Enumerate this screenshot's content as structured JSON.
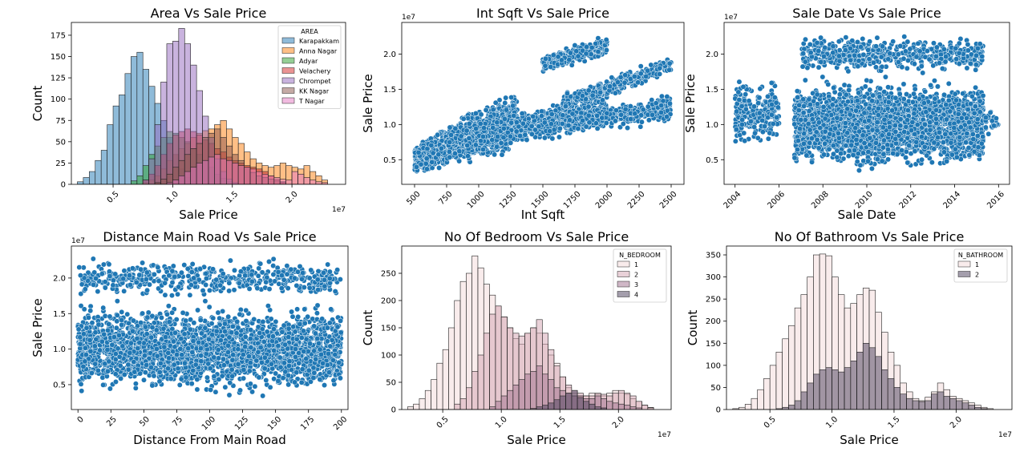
{
  "chart_data": [
    {
      "id": "area",
      "type": "histogram",
      "title": "Area Vs Sale Price",
      "xlabel": "Sale Price",
      "ylabel": "Count",
      "x_offset_label": "1e7",
      "xlim": [
        0.15,
        2.45
      ],
      "ylim": [
        0,
        190
      ],
      "xticks": [
        0.5,
        1.0,
        1.5,
        2.0
      ],
      "xtick_labels": [
        "0.5",
        "1.0",
        "1.5",
        "2.0"
      ],
      "yticks": [
        0,
        25,
        50,
        75,
        100,
        125,
        150,
        175
      ],
      "bin_start": 0.2,
      "bin_width": 0.05,
      "legend_title": "AREA",
      "legend_position": "top-right",
      "series": [
        {
          "name": "Karapakkam",
          "color": "#1f77b4",
          "values": [
            3,
            8,
            15,
            28,
            40,
            70,
            92,
            105,
            130,
            150,
            155,
            135,
            115,
            95,
            75,
            55,
            35,
            18,
            8,
            3,
            0,
            0,
            0,
            0,
            0,
            0,
            0,
            0,
            0,
            0,
            0,
            0,
            0,
            0,
            0,
            0,
            0,
            0,
            0,
            0,
            0,
            0
          ]
        },
        {
          "name": "Anna Nagar",
          "color": "#ff7f0e",
          "values": [
            0,
            0,
            0,
            0,
            0,
            0,
            0,
            0,
            0,
            0,
            0,
            2,
            5,
            10,
            18,
            28,
            35,
            42,
            48,
            55,
            60,
            63,
            65,
            70,
            75,
            65,
            55,
            48,
            38,
            30,
            25,
            22,
            20,
            22,
            25,
            22,
            20,
            18,
            22,
            15,
            10,
            5
          ]
        },
        {
          "name": "Adyar",
          "color": "#2ca02c",
          "values": [
            0,
            0,
            0,
            0,
            0,
            0,
            0,
            0,
            0,
            4,
            10,
            22,
            35,
            45,
            55,
            62,
            60,
            55,
            50,
            42,
            35,
            28,
            20,
            12,
            7,
            3,
            1,
            0,
            0,
            0,
            0,
            0,
            0,
            0,
            0,
            0,
            0,
            0,
            0,
            0,
            0,
            0
          ]
        },
        {
          "name": "Velachery",
          "color": "#d62728",
          "values": [
            0,
            0,
            0,
            0,
            0,
            0,
            0,
            0,
            0,
            0,
            0,
            5,
            12,
            22,
            35,
            48,
            58,
            62,
            65,
            62,
            58,
            52,
            48,
            42,
            38,
            32,
            28,
            25,
            22,
            20,
            18,
            15,
            10,
            6,
            3,
            0,
            0,
            0,
            0,
            0,
            0,
            0
          ]
        },
        {
          "name": "Chrompet",
          "color": "#9467bd",
          "values": [
            0,
            0,
            0,
            0,
            0,
            0,
            0,
            0,
            0,
            0,
            0,
            5,
            30,
            70,
            120,
            165,
            168,
            183,
            165,
            140,
            110,
            80,
            55,
            30,
            15,
            6,
            2,
            0,
            0,
            0,
            0,
            0,
            0,
            0,
            0,
            0,
            0,
            0,
            0,
            0,
            0,
            0
          ]
        },
        {
          "name": "KK Nagar",
          "color": "#8c564b",
          "values": [
            0,
            0,
            0,
            0,
            0,
            0,
            0,
            0,
            0,
            0,
            0,
            0,
            0,
            2,
            6,
            12,
            20,
            28,
            35,
            42,
            48,
            55,
            60,
            65,
            55,
            45,
            35,
            28,
            20,
            14,
            10,
            8,
            6,
            4,
            2,
            0,
            0,
            0,
            0,
            0,
            0,
            0
          ]
        },
        {
          "name": "T Nagar",
          "color": "#e377c2",
          "values": [
            0,
            0,
            0,
            0,
            0,
            0,
            0,
            0,
            0,
            0,
            0,
            0,
            0,
            0,
            0,
            2,
            5,
            10,
            15,
            20,
            25,
            28,
            32,
            35,
            30,
            28,
            25,
            22,
            20,
            18,
            15,
            12,
            10,
            8,
            6,
            5,
            15,
            12,
            8,
            5,
            3,
            2
          ]
        }
      ]
    },
    {
      "id": "intsqft",
      "type": "scatter",
      "title": "Int Sqft Vs Sale Price",
      "xlabel": "Int Sqft",
      "ylabel": "Sale Price",
      "y_offset_label": "1e7",
      "xlim": [
        400,
        2600
      ],
      "ylim": [
        0.15,
        2.45
      ],
      "xticks": [
        500,
        750,
        1000,
        1250,
        1500,
        1750,
        2000,
        2250,
        2500
      ],
      "yticks": [
        0.5,
        1.0,
        1.5,
        2.0
      ],
      "ytick_labels": [
        "0.5",
        "1.0",
        "1.5",
        "2.0"
      ],
      "point_color": "#1f77b4",
      "clusters": [
        {
          "x": [
            500,
            1300
          ],
          "y_lo": [
            0.25,
            0.55
          ],
          "y_hi": [
            0.75,
            1.6
          ],
          "n": 1400
        },
        {
          "x": [
            900,
            2000
          ],
          "y_lo": [
            0.55,
            0.9
          ],
          "y_hi": [
            1.05,
            1.5
          ],
          "n": 900
        },
        {
          "x": [
            1500,
            2000
          ],
          "y_lo": [
            1.7,
            1.95
          ],
          "y_hi": [
            2.0,
            2.3
          ],
          "n": 320
        },
        {
          "x": [
            1650,
            2500
          ],
          "y_lo": [
            1.15,
            1.7
          ],
          "y_hi": [
            1.45,
            2.0
          ],
          "n": 350
        },
        {
          "x": [
            1700,
            2500
          ],
          "y_lo": [
            0.85,
            1.0
          ],
          "y_hi": [
            1.2,
            1.45
          ],
          "n": 350
        }
      ]
    },
    {
      "id": "saledate",
      "type": "scatter",
      "title": "Sale Date Vs Sale Price",
      "xlabel": "Sale Date",
      "ylabel": "Sale Price",
      "y_offset_label": "1e7",
      "xlim": [
        2003.5,
        2016.5
      ],
      "ylim": [
        0.15,
        2.45
      ],
      "xticks": [
        2004,
        2006,
        2008,
        2010,
        2012,
        2014,
        2016
      ],
      "yticks": [
        0.5,
        1.0,
        1.5,
        2.0
      ],
      "ytick_labels": [
        "0.5",
        "1.0",
        "1.5",
        "2.0"
      ],
      "point_color": "#1f77b4",
      "clusters": [
        {
          "x": [
            2004,
            2006
          ],
          "y_lo": [
            0.6,
            0.6
          ],
          "y_hi": [
            1.7,
            1.7
          ],
          "n": 220
        },
        {
          "x": [
            2006.7,
            2015.3
          ],
          "y_lo": [
            0.3,
            0.3
          ],
          "y_hi": [
            1.7,
            1.7
          ],
          "n": 2600
        },
        {
          "x": [
            2007,
            2015.3
          ],
          "y_lo": [
            1.7,
            1.7
          ],
          "y_hi": [
            2.3,
            2.3
          ],
          "n": 500
        },
        {
          "x": [
            2015.3,
            2016
          ],
          "y_lo": [
            0.8,
            0.8
          ],
          "y_hi": [
            1.3,
            1.3
          ],
          "n": 25
        }
      ]
    },
    {
      "id": "distance",
      "type": "scatter",
      "title": "Distance Main Road Vs Sale Price",
      "xlabel": "Distance From Main Road",
      "ylabel": "Sale Price",
      "y_offset_label": "1e7",
      "xlim": [
        -5,
        205
      ],
      "ylim": [
        0.15,
        2.45
      ],
      "xticks": [
        0,
        25,
        50,
        75,
        100,
        125,
        150,
        175,
        200
      ],
      "yticks": [
        0.5,
        1.0,
        1.5,
        2.0
      ],
      "ytick_labels": [
        "0.5",
        "1.0",
        "1.5",
        "2.0"
      ],
      "point_color": "#1f77b4",
      "clusters": [
        {
          "x": [
            0,
            200
          ],
          "y_lo": [
            0.3,
            0.3
          ],
          "y_hi": [
            1.7,
            1.7
          ],
          "n": 2600
        },
        {
          "x": [
            0,
            200
          ],
          "y_lo": [
            1.7,
            1.7
          ],
          "y_hi": [
            2.3,
            2.3
          ],
          "n": 450
        }
      ]
    },
    {
      "id": "bedroom",
      "type": "histogram",
      "title": "No Of Bedroom Vs Sale Price",
      "xlabel": "Sale Price",
      "ylabel": "Count",
      "x_offset_label": "1e7",
      "xlim": [
        0.15,
        2.45
      ],
      "ylim": [
        0,
        300
      ],
      "xticks": [
        0.5,
        1.0,
        1.5,
        2.0
      ],
      "xtick_labels": [
        "0.5",
        "1.0",
        "1.5",
        "2.0"
      ],
      "yticks": [
        0,
        50,
        100,
        150,
        200,
        250
      ],
      "bin_start": 0.2,
      "bin_width": 0.05,
      "legend_title": "N_BEDROOM",
      "legend_position": "top-right",
      "series": [
        {
          "name": "1",
          "color": "#f4dad9",
          "values": [
            5,
            10,
            20,
            35,
            55,
            85,
            110,
            150,
            200,
            235,
            250,
            282,
            260,
            230,
            210,
            190,
            170,
            150,
            130,
            120,
            140,
            150,
            140,
            120,
            100,
            85,
            60,
            40,
            30,
            25,
            25,
            30,
            28,
            25,
            30,
            35,
            30,
            28,
            20,
            15,
            8,
            4,
            0
          ]
        },
        {
          "name": "2",
          "color": "#d4a3b1",
          "values": [
            0,
            0,
            0,
            0,
            0,
            0,
            0,
            0,
            10,
            20,
            40,
            70,
            100,
            140,
            175,
            190,
            170,
            150,
            140,
            135,
            140,
            150,
            165,
            140,
            110,
            80,
            60,
            45,
            35,
            30,
            25,
            25,
            30,
            28,
            25,
            30,
            35,
            30,
            25,
            15,
            8,
            3,
            0
          ]
        },
        {
          "name": "3",
          "color": "#a0708d",
          "values": [
            0,
            0,
            0,
            0,
            0,
            0,
            0,
            0,
            0,
            0,
            0,
            0,
            0,
            0,
            5,
            15,
            25,
            35,
            45,
            55,
            65,
            70,
            80,
            65,
            55,
            40,
            35,
            30,
            25,
            25,
            20,
            20,
            25,
            20,
            15,
            12,
            10,
            8,
            5,
            3,
            0,
            0,
            0
          ]
        },
        {
          "name": "4",
          "color": "#4a3d5a",
          "values": [
            0,
            0,
            0,
            0,
            0,
            0,
            0,
            0,
            0,
            0,
            0,
            0,
            0,
            0,
            0,
            0,
            0,
            0,
            0,
            0,
            0,
            2,
            5,
            8,
            12,
            18,
            25,
            30,
            35,
            22,
            15,
            10,
            5,
            3,
            0,
            0,
            0,
            0,
            0,
            0,
            0,
            0,
            0
          ]
        }
      ]
    },
    {
      "id": "bathroom",
      "type": "histogram",
      "title": "No Of Bathroom Vs Sale Price",
      "xlabel": "Sale Price",
      "ylabel": "Count",
      "x_offset_label": "1e7",
      "xlim": [
        0.15,
        2.45
      ],
      "ylim": [
        0,
        370
      ],
      "xticks": [
        0.5,
        1.0,
        1.5,
        2.0
      ],
      "xtick_labels": [
        "0.5",
        "1.0",
        "1.5",
        "2.0"
      ],
      "yticks": [
        0,
        50,
        100,
        150,
        200,
        250,
        300,
        350
      ],
      "bin_start": 0.2,
      "bin_width": 0.05,
      "legend_title": "N_BATHROOM",
      "legend_position": "top-right",
      "series": [
        {
          "name": "1",
          "color": "#f4dad9",
          "values": [
            2,
            5,
            12,
            25,
            45,
            70,
            100,
            130,
            160,
            190,
            230,
            260,
            300,
            350,
            352,
            348,
            300,
            260,
            230,
            240,
            260,
            275,
            270,
            220,
            175,
            130,
            100,
            60,
            40,
            25,
            20,
            28,
            40,
            60,
            45,
            30,
            25,
            20,
            15,
            10,
            5,
            2,
            0
          ]
        },
        {
          "name": "2",
          "color": "#4a3d5a",
          "values": [
            0,
            0,
            0,
            0,
            0,
            0,
            0,
            2,
            5,
            10,
            20,
            40,
            60,
            80,
            90,
            95,
            90,
            85,
            95,
            110,
            130,
            150,
            140,
            120,
            90,
            70,
            50,
            35,
            25,
            20,
            18,
            20,
            35,
            40,
            30,
            25,
            20,
            15,
            10,
            5,
            2,
            0,
            0
          ]
        }
      ]
    }
  ]
}
